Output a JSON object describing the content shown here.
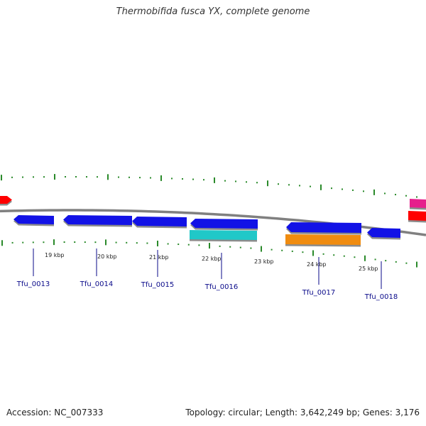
{
  "header": {
    "title": "Thermobifida fusca YX, complete genome"
  },
  "footer": {
    "accession": "Accession: NC_007333",
    "summary": "Topology: circular; Length: 3,642,249 bp; Genes: 3,176"
  },
  "map": {
    "colors": {
      "backbone": "#808080",
      "cds": "#1212e6",
      "rna": "#20c8c8",
      "misc": "#f08c10",
      "red": "#ff0000",
      "magenta": "#e6208c",
      "tick": "#2a8a2a",
      "label": "#0a0a8a"
    },
    "kbp_ticks": [
      "19 kbp",
      "20 kbp",
      "21 kbp",
      "22 kbp",
      "23 kbp",
      "24 kbp",
      "25 kbp"
    ],
    "gene_labels": [
      "Tfu_0013",
      "Tfu_0014",
      "Tfu_0015",
      "Tfu_0016",
      "Tfu_0017",
      "Tfu_0018"
    ]
  }
}
